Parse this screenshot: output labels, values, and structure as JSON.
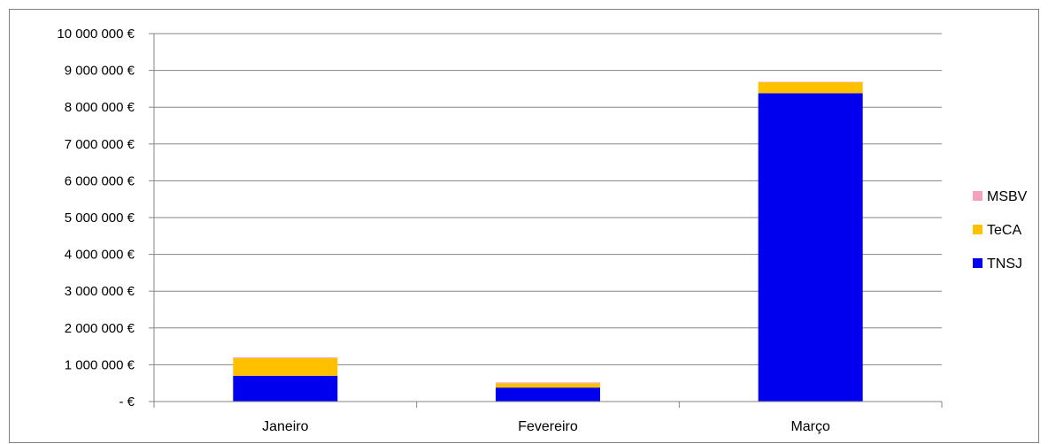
{
  "chart_data": {
    "type": "bar",
    "stacked": true,
    "title": "",
    "xlabel": "",
    "ylabel": "",
    "categories": [
      "Janeiro",
      "Fevereiro",
      "Março"
    ],
    "series": [
      {
        "name": "TNSJ",
        "color": "#0000ee",
        "values": [
          700000,
          380000,
          8380000
        ]
      },
      {
        "name": "TeCA",
        "color": "#ffc000",
        "values": [
          480000,
          120000,
          300000
        ]
      },
      {
        "name": "MSBV",
        "color": "#f6a0c0",
        "values": [
          20000,
          20000,
          10000
        ]
      }
    ],
    "ylim": [
      0,
      10000000
    ],
    "yticks": [
      0,
      1000000,
      2000000,
      3000000,
      4000000,
      5000000,
      6000000,
      7000000,
      8000000,
      9000000,
      10000000
    ],
    "ytick_labels": [
      "- €",
      "1 000 000 €",
      "2 000 000 €",
      "3 000 000 €",
      "4 000 000 €",
      "5 000 000 €",
      "6 000 000 €",
      "7 000 000 €",
      "8 000 000 €",
      "9 000 000 €",
      "10 000 000 €"
    ],
    "grid": true,
    "legend_position": "right",
    "legend_order": [
      "MSBV",
      "TeCA",
      "TNSJ"
    ],
    "gridline_color": "#868686",
    "axis_color": "#868686"
  }
}
